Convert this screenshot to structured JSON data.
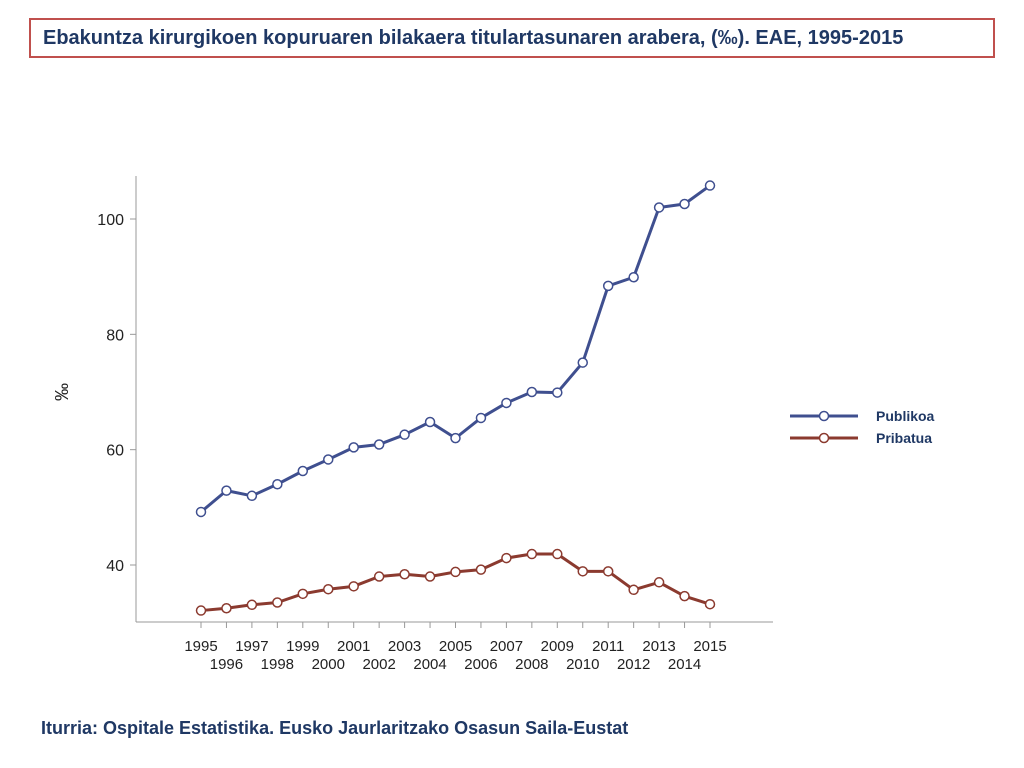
{
  "title": "Ebakuntza kirurgikoen kopuruaren bilakaera titulartasunaren arabera, (‰). EAE, 1995-2015",
  "source": "Iturria: Ospitale Estatistika. Eusko Jaurlaritzako Osasun Saila-Eustat",
  "colors": {
    "title_border": "#c0504d",
    "text": "#1f3864",
    "publikoa": "#3f4f8f",
    "pribatua": "#8b3a2f"
  },
  "chart_data": {
    "type": "line",
    "ylabel": "‰",
    "xlabel": "",
    "x": [
      1995,
      1996,
      1997,
      1998,
      1999,
      2000,
      2001,
      2002,
      2003,
      2004,
      2005,
      2006,
      2007,
      2008,
      2009,
      2010,
      2011,
      2012,
      2013,
      2014,
      2015
    ],
    "x_tick_labels": [
      "1995",
      "1996",
      "1997",
      "1998",
      "1999",
      "2000",
      "2001",
      "2002",
      "2003",
      "2004",
      "2005",
      "2006",
      "2007",
      "2008",
      "2009",
      "2010",
      "2011",
      "2012",
      "2013",
      "2014",
      "2015"
    ],
    "y_ticks": [
      40,
      60,
      80,
      100
    ],
    "y_tick_labels": [
      "40",
      "60",
      "80",
      "100"
    ],
    "ylim": [
      31,
      108
    ],
    "grid": false,
    "legend_position": "right",
    "series": [
      {
        "name": "Publikoa",
        "color": "#3f4f8f",
        "values": [
          49.2,
          52.9,
          52.0,
          54.0,
          56.3,
          58.3,
          60.4,
          60.9,
          62.6,
          64.8,
          62.0,
          65.5,
          68.1,
          70.0,
          69.9,
          75.1,
          88.4,
          89.9,
          102.0,
          102.6,
          105.8
        ]
      },
      {
        "name": "Pribatua",
        "color": "#8b3a2f",
        "values": [
          32.1,
          32.5,
          33.1,
          33.5,
          35.0,
          35.8,
          36.3,
          38.0,
          38.4,
          38.0,
          38.8,
          39.2,
          41.2,
          41.9,
          41.9,
          38.9,
          38.9,
          35.7,
          37.0,
          34.6,
          33.2
        ]
      }
    ]
  }
}
